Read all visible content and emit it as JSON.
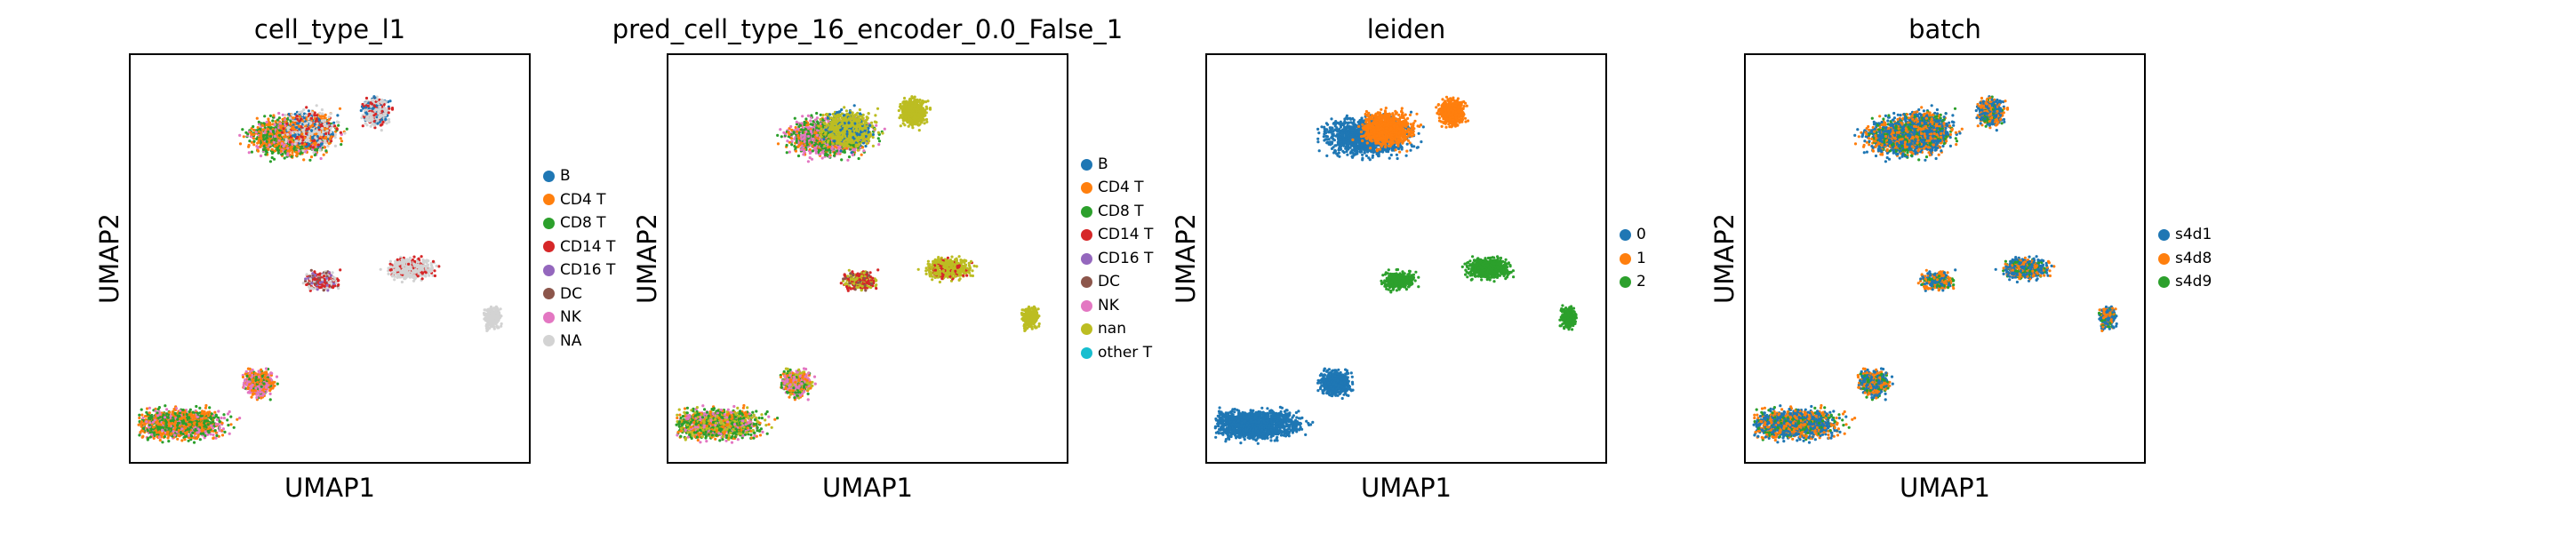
{
  "chart_data": [
    {
      "type": "scatter",
      "title": "cell_type_l1",
      "xlabel": "UMAP1",
      "ylabel": "UMAP2",
      "grid": false,
      "legend_position": "right",
      "legend": [
        {
          "label": "B",
          "color": "#1f77b4"
        },
        {
          "label": "CD4 T",
          "color": "#ff7f0e"
        },
        {
          "label": "CD8 T",
          "color": "#2ca02c"
        },
        {
          "label": "CD14 T",
          "color": "#d62728"
        },
        {
          "label": "CD16 T",
          "color": "#9467bd"
        },
        {
          "label": "DC",
          "color": "#8c564b"
        },
        {
          "label": "NK",
          "color": "#e377c2"
        },
        {
          "label": "NA",
          "color": "#d3d3d3"
        }
      ]
    },
    {
      "type": "scatter",
      "title": "pred_cell_type_16_encoder_0.0_False_1",
      "xlabel": "UMAP1",
      "ylabel": "UMAP2",
      "grid": false,
      "legend_position": "right",
      "legend": [
        {
          "label": "B",
          "color": "#1f77b4"
        },
        {
          "label": "CD4 T",
          "color": "#ff7f0e"
        },
        {
          "label": "CD8 T",
          "color": "#2ca02c"
        },
        {
          "label": "CD14 T",
          "color": "#d62728"
        },
        {
          "label": "CD16 T",
          "color": "#9467bd"
        },
        {
          "label": "DC",
          "color": "#8c564b"
        },
        {
          "label": "NK",
          "color": "#e377c2"
        },
        {
          "label": "nan",
          "color": "#bcbd22"
        },
        {
          "label": "other T",
          "color": "#17becf"
        }
      ]
    },
    {
      "type": "scatter",
      "title": "leiden",
      "xlabel": "UMAP1",
      "ylabel": "UMAP2",
      "grid": false,
      "legend_position": "right",
      "legend": [
        {
          "label": "0",
          "color": "#1f77b4"
        },
        {
          "label": "1",
          "color": "#ff7f0e"
        },
        {
          "label": "2",
          "color": "#2ca02c"
        }
      ]
    },
    {
      "type": "scatter",
      "title": "batch",
      "xlabel": "UMAP1",
      "ylabel": "UMAP2",
      "grid": false,
      "legend_position": "right",
      "legend": [
        {
          "label": "s4d1",
          "color": "#1f77b4"
        },
        {
          "label": "s4d8",
          "color": "#ff7f0e"
        },
        {
          "label": "s4d9",
          "color": "#2ca02c"
        }
      ]
    }
  ]
}
